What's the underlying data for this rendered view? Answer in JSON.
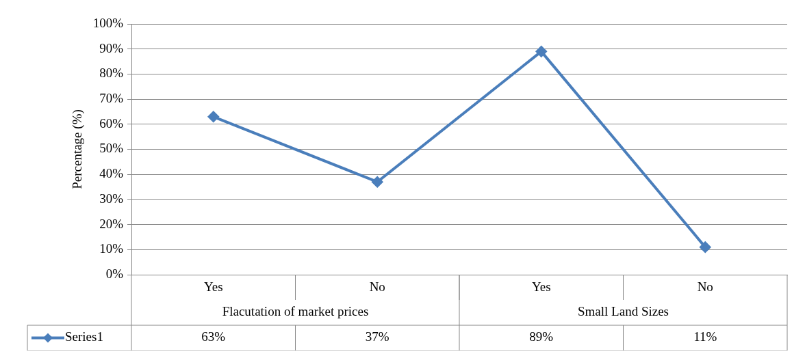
{
  "chart_data": {
    "type": "line",
    "ylabel": "Percentage (%)",
    "categories": [
      "Yes",
      "No",
      "Yes",
      "No"
    ],
    "annotations": [
      "Flacutation of market prices",
      "Small Land Sizes"
    ],
    "series": [
      {
        "name": "Series1",
        "color": "#4a7ebb",
        "values": [
          63,
          37,
          89,
          11
        ],
        "value_labels": [
          "63%",
          "37%",
          "89%",
          "11%"
        ]
      }
    ],
    "ylim": [
      0,
      100
    ],
    "yticks": [
      {
        "value": 0,
        "label": "0%"
      },
      {
        "value": 10,
        "label": "10%"
      },
      {
        "value": 20,
        "label": "20%"
      },
      {
        "value": 30,
        "label": "30%"
      },
      {
        "value": 40,
        "label": "40%"
      },
      {
        "value": 50,
        "label": "50%"
      },
      {
        "value": 60,
        "label": "60%"
      },
      {
        "value": 70,
        "label": "70%"
      },
      {
        "value": 80,
        "label": "80%"
      },
      {
        "value": 90,
        "label": "90%"
      },
      {
        "value": 100,
        "label": "100%"
      }
    ],
    "grid": "y",
    "legend": "bottom left",
    "marker": "diamond",
    "line_style": "solid"
  }
}
